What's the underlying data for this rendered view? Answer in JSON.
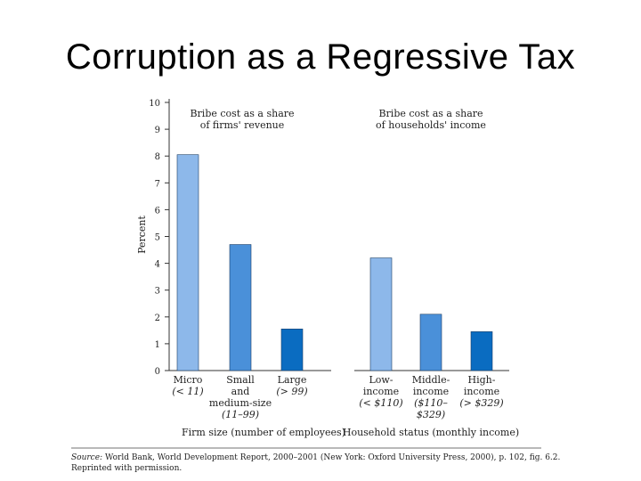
{
  "slide_title": "Corruption as a Regressive Tax",
  "source": {
    "label": "Source:",
    "text": "World Bank, World Development Report, 2000–2001 (New York: Oxford University Press, 2000), p. 102, fig. 6.2. Reprinted with permission."
  },
  "chart_data": {
    "type": "bar",
    "ylabel": "Percent",
    "ylim": [
      0,
      10
    ],
    "yticks": [
      0,
      1,
      2,
      3,
      4,
      5,
      6,
      7,
      8,
      9,
      10
    ],
    "colors": {
      "light": "#8db8ea",
      "mid": "#4a90d9",
      "dark": "#0a6cc1"
    },
    "groups": [
      {
        "title": [
          "Bribe cost as a share",
          "of firms' revenue"
        ],
        "xlabel": "Firm size (number of employees)",
        "bars": [
          {
            "label": [
              "Micro"
            ],
            "sub": [
              "(< 11)"
            ],
            "value": 8.05,
            "color": "light"
          },
          {
            "label": [
              "Small",
              "and",
              "medium-size"
            ],
            "sub": [
              "(11–99)"
            ],
            "value": 4.7,
            "color": "mid"
          },
          {
            "label": [
              "Large"
            ],
            "sub": [
              "(> 99)"
            ],
            "value": 1.55,
            "color": "dark"
          }
        ]
      },
      {
        "title": [
          "Bribe cost as a share",
          "of households' income"
        ],
        "xlabel": "Household status (monthly income)",
        "bars": [
          {
            "label": [
              "Low-",
              "income"
            ],
            "sub": [
              "(< $110)"
            ],
            "value": 4.2,
            "color": "light"
          },
          {
            "label": [
              "Middle-",
              "income"
            ],
            "sub": [
              "($110–",
              "$329)"
            ],
            "value": 2.1,
            "color": "mid"
          },
          {
            "label": [
              "High-",
              "income"
            ],
            "sub": [
              "(> $329)"
            ],
            "value": 1.45,
            "color": "dark"
          }
        ]
      }
    ]
  }
}
